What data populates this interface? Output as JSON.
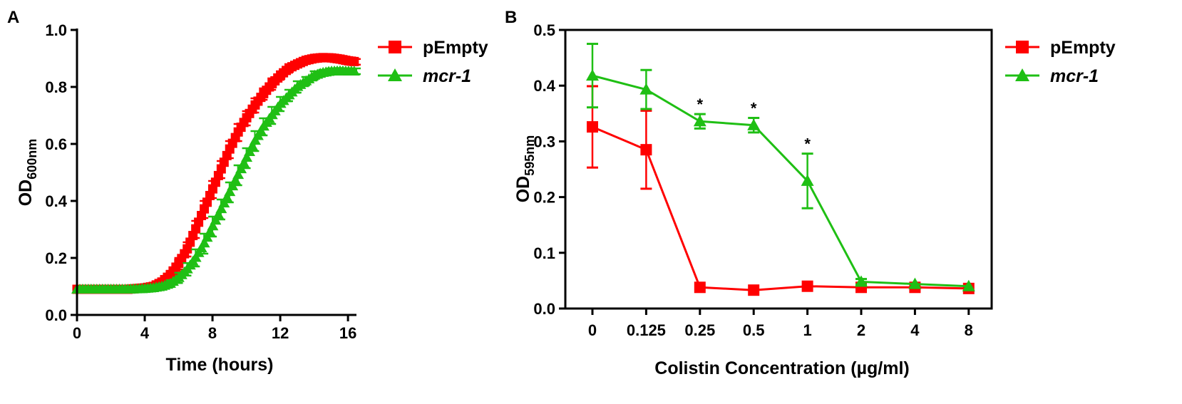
{
  "colors": {
    "pEmpty": "#ff0000",
    "mcr1": "#1fbf14",
    "axis": "#000000"
  },
  "legend_entries": [
    "pEmpty",
    "mcr-1"
  ],
  "chart_data": [
    {
      "type": "line",
      "panel_label": "A",
      "xlabel": "Time (hours)",
      "ylabel_main": "OD",
      "ylabel_sub": "600nm",
      "x_ticks": [
        "0",
        "4",
        "8",
        "12",
        "16"
      ],
      "y_ticks": [
        "0.0",
        "0.2",
        "0.4",
        "0.6",
        "0.8",
        "1.0"
      ],
      "xlim": [
        0,
        16.5
      ],
      "ylim": [
        0,
        1.0
      ],
      "grid": false,
      "legend_position": "right",
      "series": [
        {
          "name": "pEmpty",
          "marker": "square",
          "x": [
            0,
            1,
            2,
            3,
            4,
            4.5,
            5,
            5.5,
            6,
            6.5,
            7,
            7.5,
            8,
            8.5,
            9,
            9.5,
            10,
            10.5,
            11,
            11.5,
            12,
            12.5,
            13,
            13.5,
            14,
            14.5,
            15,
            15.5,
            16,
            16.5
          ],
          "y": [
            0.09,
            0.09,
            0.09,
            0.09,
            0.095,
            0.1,
            0.115,
            0.14,
            0.18,
            0.23,
            0.3,
            0.37,
            0.44,
            0.51,
            0.58,
            0.64,
            0.69,
            0.735,
            0.775,
            0.81,
            0.84,
            0.865,
            0.88,
            0.893,
            0.9,
            0.903,
            0.902,
            0.898,
            0.892,
            0.888
          ],
          "error": [
            0,
            0,
            0,
            0,
            0,
            0.005,
            0.01,
            0.015,
            0.02,
            0.025,
            0.03,
            0.03,
            0.03,
            0.03,
            0.03,
            0.03,
            0.025,
            0.025,
            0.02,
            0.02,
            0.015,
            0.015,
            0.01,
            0.01,
            0.01,
            0.01,
            0.01,
            0.01,
            0.01,
            0.01
          ]
        },
        {
          "name": "mcr-1",
          "marker": "triangle",
          "x": [
            0,
            1,
            2,
            3,
            4,
            4.5,
            5,
            5.5,
            6,
            6.5,
            7,
            7.5,
            8,
            8.5,
            9,
            9.5,
            10,
            10.5,
            11,
            11.5,
            12,
            12.5,
            13,
            13.5,
            14,
            14.5,
            15,
            15.5,
            16,
            16.5
          ],
          "y": [
            0.09,
            0.09,
            0.09,
            0.09,
            0.092,
            0.095,
            0.1,
            0.11,
            0.13,
            0.16,
            0.2,
            0.25,
            0.31,
            0.37,
            0.43,
            0.49,
            0.55,
            0.61,
            0.66,
            0.7,
            0.74,
            0.77,
            0.8,
            0.82,
            0.84,
            0.85,
            0.855,
            0.856,
            0.855,
            0.855
          ],
          "error": [
            0,
            0,
            0,
            0,
            0,
            0.005,
            0.008,
            0.012,
            0.018,
            0.022,
            0.03,
            0.035,
            0.035,
            0.035,
            0.035,
            0.035,
            0.035,
            0.035,
            0.03,
            0.03,
            0.025,
            0.02,
            0.02,
            0.015,
            0.015,
            0.01,
            0.01,
            0.01,
            0.01,
            0.01
          ]
        }
      ]
    },
    {
      "type": "line",
      "panel_label": "B",
      "xlabel": "Colistin Concentration (µg/ml)",
      "ylabel_main": "OD",
      "ylabel_sub": "595nm",
      "categories": [
        "0",
        "0.125",
        "0.25",
        "0.5",
        "1",
        "2",
        "4",
        "8"
      ],
      "y_ticks": [
        "0.0",
        "0.1",
        "0.2",
        "0.3",
        "0.4",
        "0.5"
      ],
      "ylim": [
        0,
        0.5
      ],
      "grid": false,
      "legend_position": "right",
      "significance_marker": "*",
      "significant_categories": [
        "0.25",
        "0.5",
        "1"
      ],
      "series": [
        {
          "name": "pEmpty",
          "marker": "square",
          "values": [
            0.326,
            0.285,
            0.038,
            0.033,
            0.04,
            0.038,
            0.038,
            0.036
          ],
          "error": [
            0.073,
            0.07,
            0.003,
            0.003,
            0.003,
            0.003,
            0.003,
            0.003
          ]
        },
        {
          "name": "mcr-1",
          "marker": "triangle",
          "values": [
            0.418,
            0.393,
            0.336,
            0.329,
            0.229,
            0.048,
            0.044,
            0.04
          ],
          "error": [
            0.057,
            0.035,
            0.013,
            0.013,
            0.049,
            0.005,
            0.003,
            0.003
          ]
        }
      ]
    }
  ]
}
